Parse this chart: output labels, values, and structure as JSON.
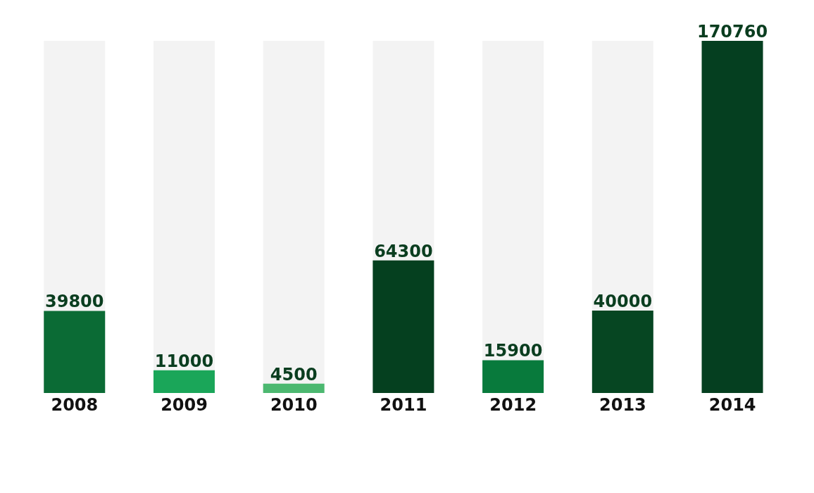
{
  "chart_data": {
    "type": "bar",
    "categories": [
      "2008",
      "2009",
      "2010",
      "2011",
      "2012",
      "2013",
      "2014"
    ],
    "values": [
      39800,
      11000,
      4500,
      64300,
      15900,
      40000,
      170760
    ],
    "colors": [
      "#0b6b35",
      "#1aa659",
      "#4cb870",
      "#05401f",
      "#087a3c",
      "#064622",
      "#053f20"
    ],
    "data_labels": true,
    "grid": false,
    "legend": false
  }
}
